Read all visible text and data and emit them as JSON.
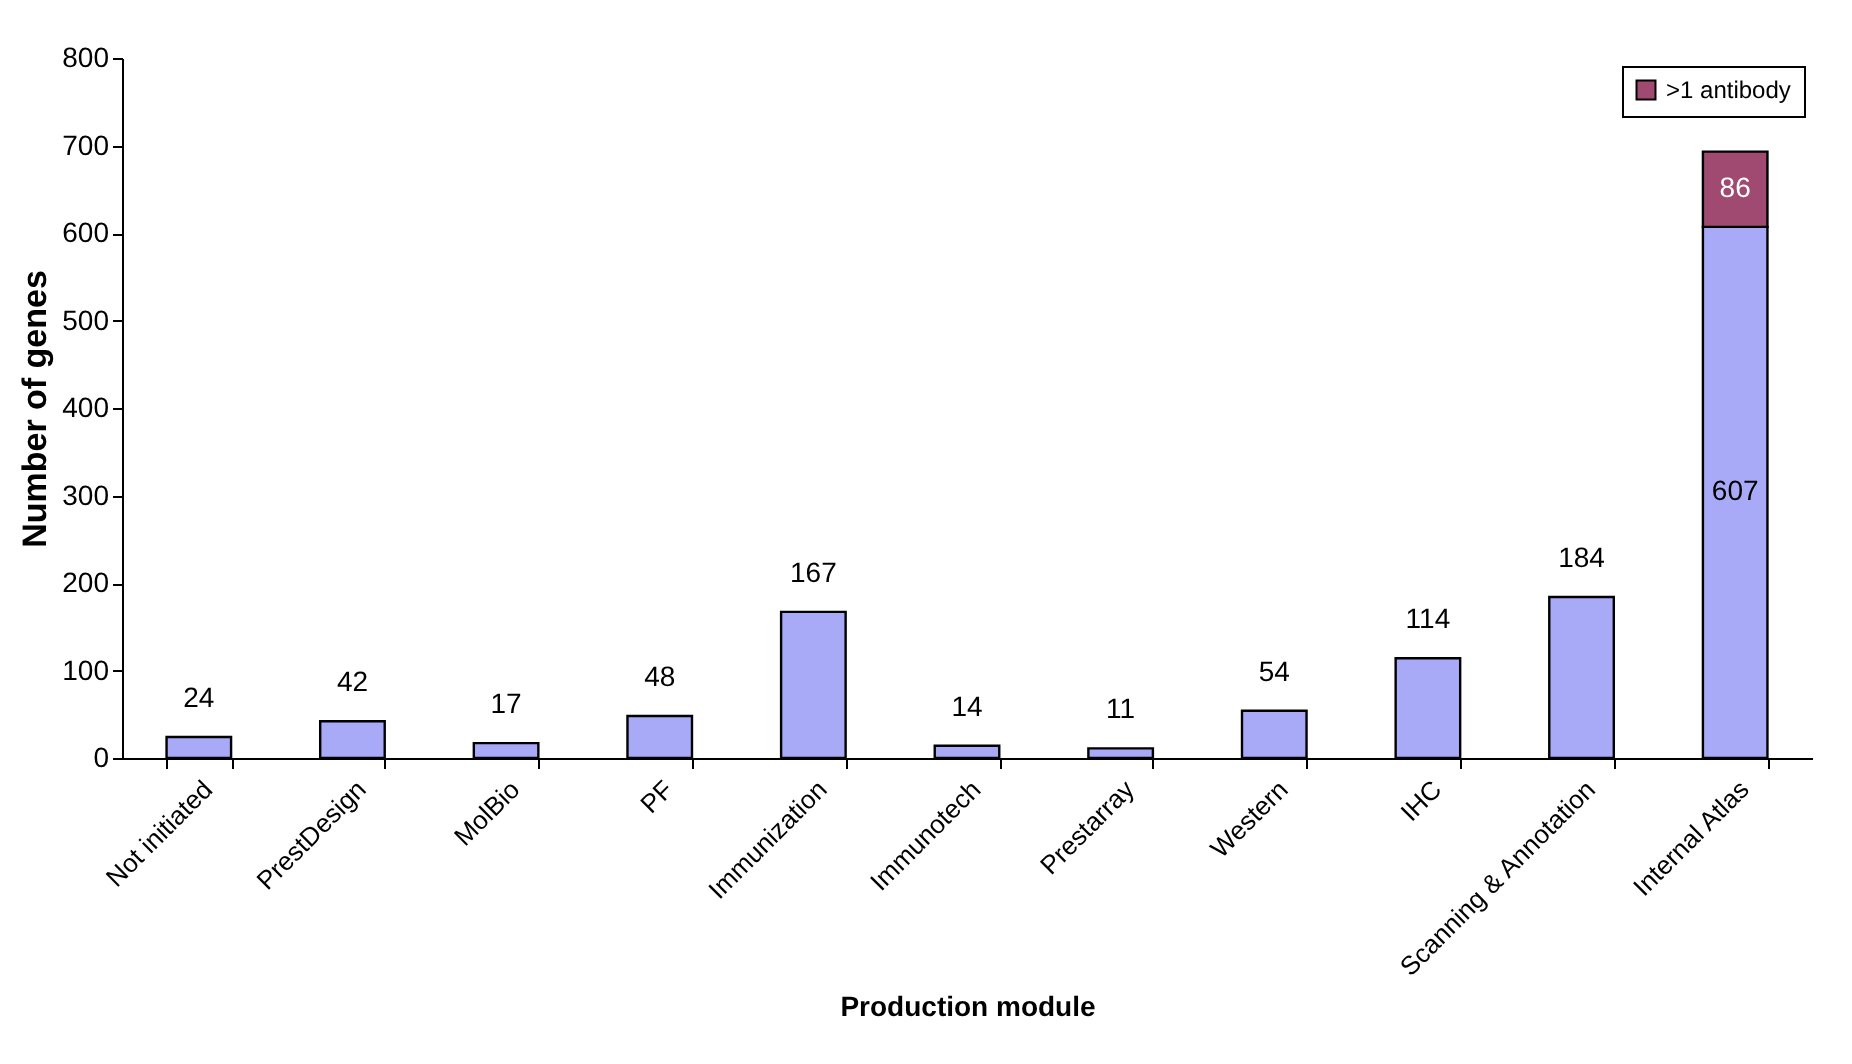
{
  "chart_data": {
    "type": "bar",
    "stacked": true,
    "xlabel": "Production module",
    "ylabel": "Number of genes",
    "categories": [
      "Not initiated",
      "PrestDesign",
      "MolBio",
      "PF",
      "Immunization",
      "Immunotech",
      "Prestarray",
      "Western",
      "IHC",
      "Scanning & Annotation",
      "Internal Atlas"
    ],
    "series": [
      {
        "color": "#a8aaf8",
        "values": [
          24,
          42,
          17,
          48,
          167,
          14,
          11,
          54,
          114,
          184,
          607
        ]
      },
      {
        "name": ">1 antibody",
        "color": "#a04a72",
        "values": [
          null,
          null,
          null,
          null,
          null,
          null,
          null,
          null,
          null,
          null,
          86
        ]
      }
    ],
    "ylim": [
      0,
      800
    ],
    "yticks": [
      0,
      100,
      200,
      300,
      400,
      500,
      600,
      700,
      800
    ],
    "data_labels": true,
    "legend": "top right",
    "grid": false
  }
}
